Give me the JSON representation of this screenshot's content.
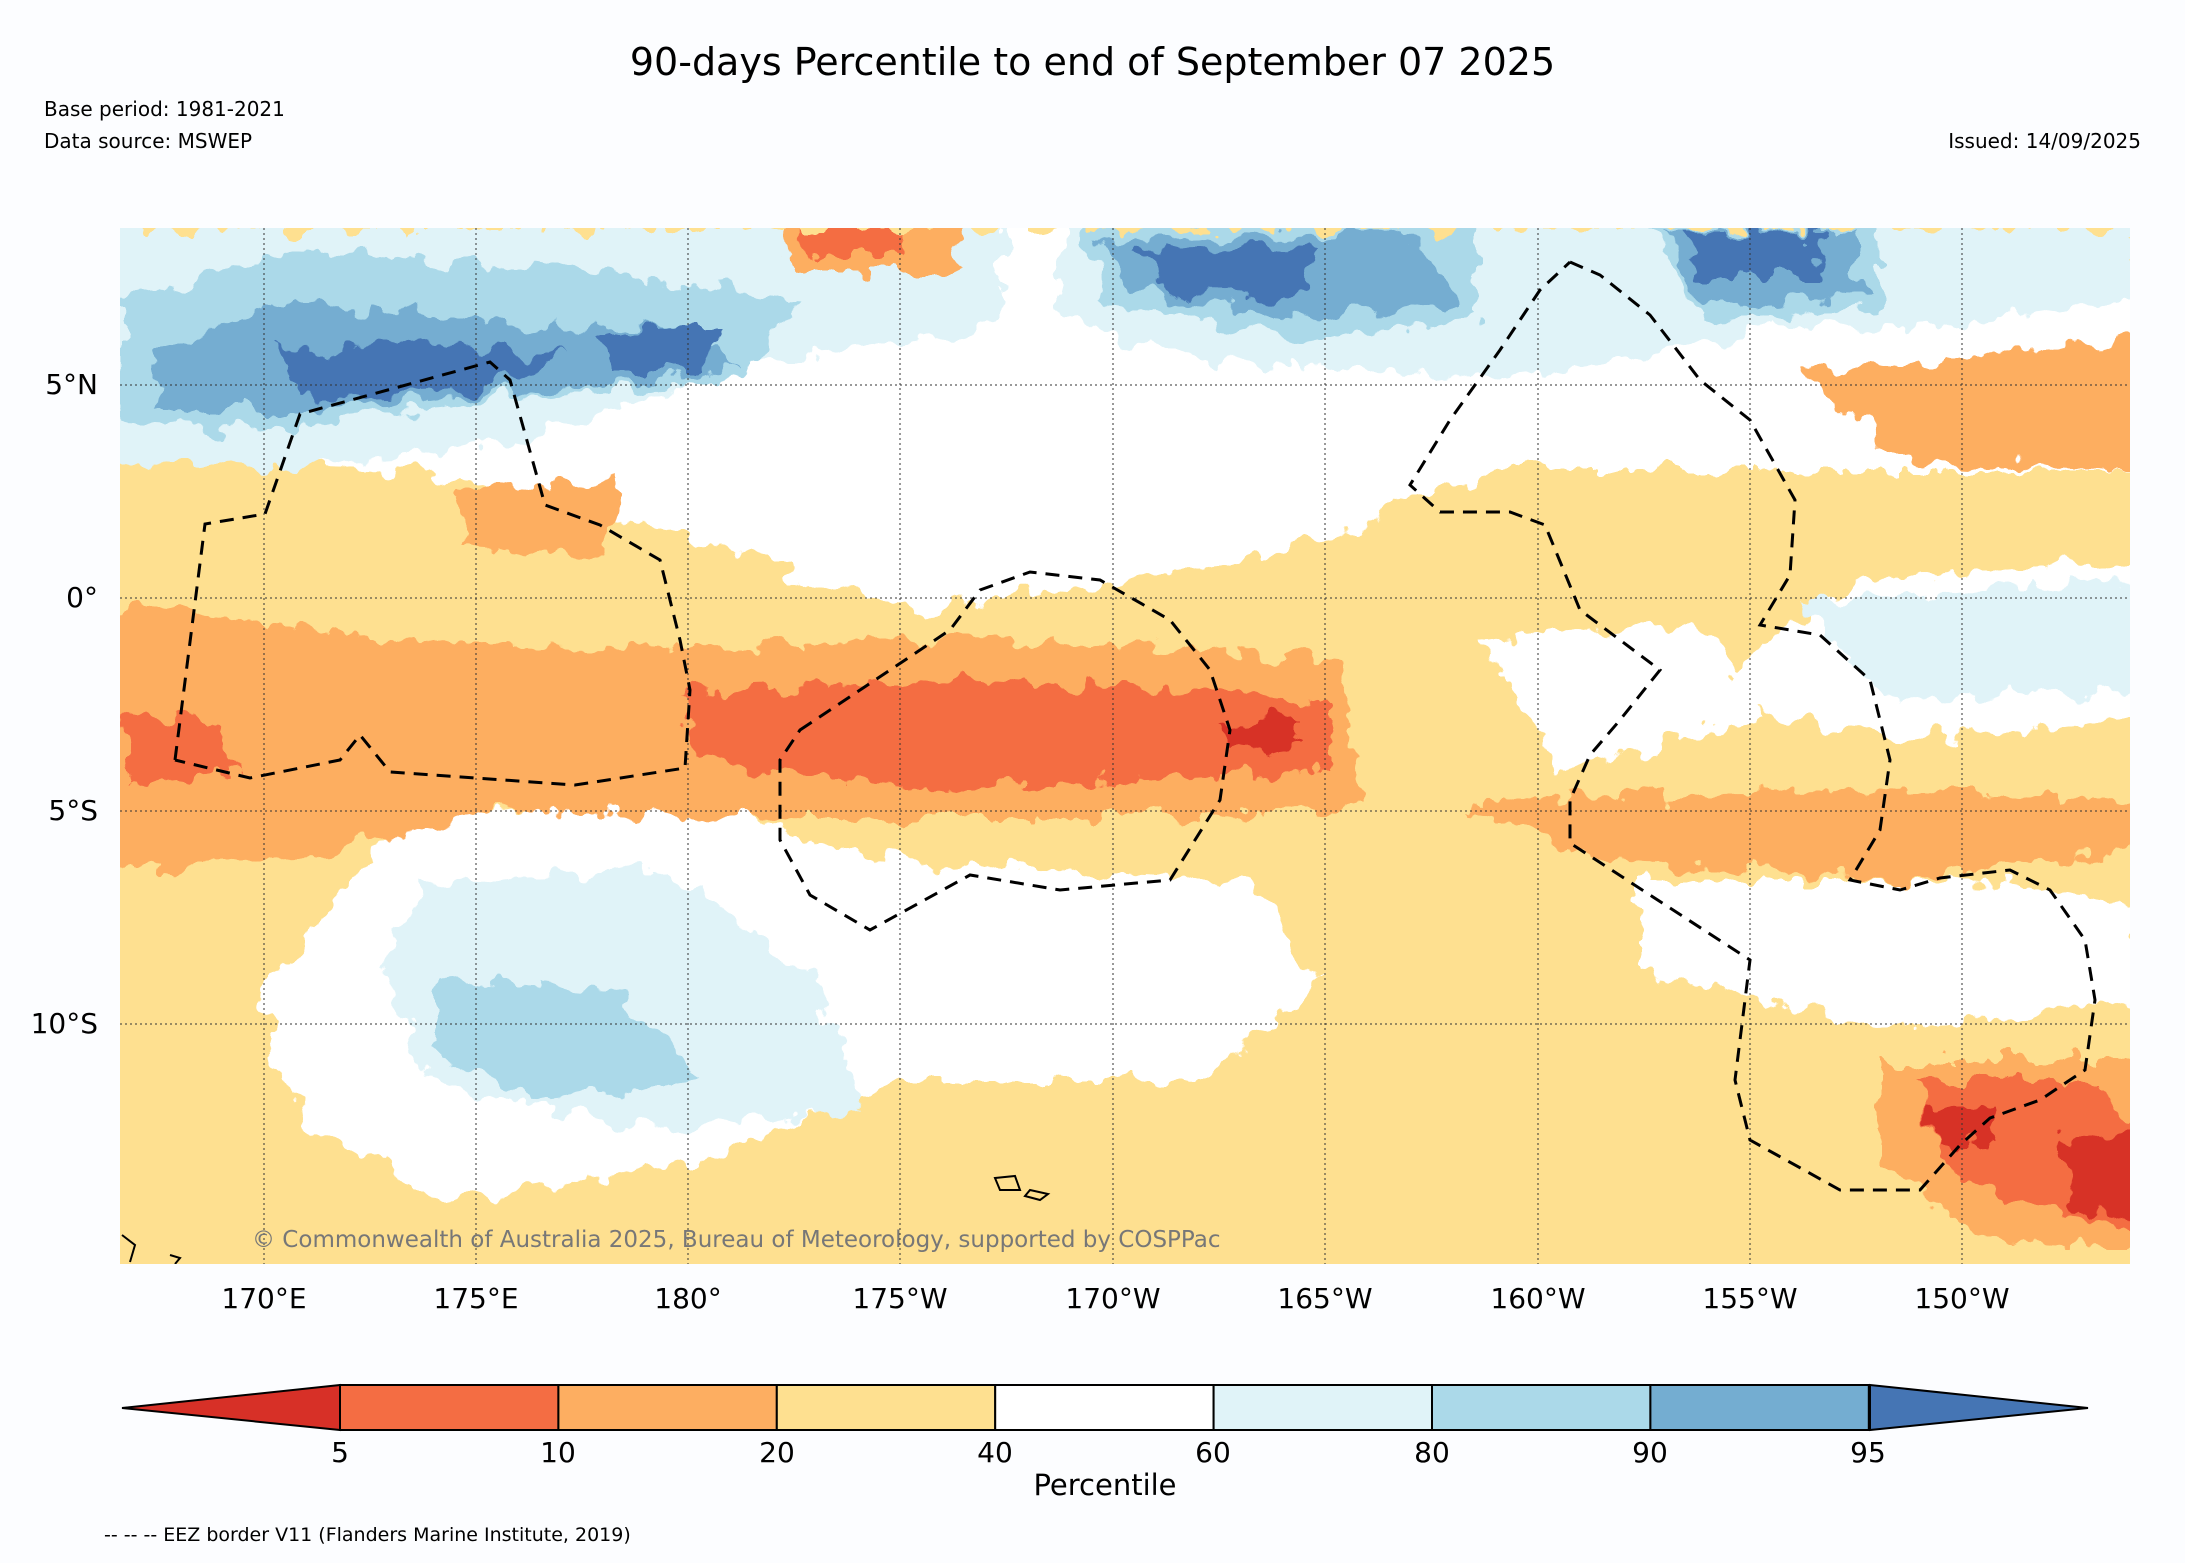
{
  "title": "90-days Percentile to end of September 07 2025",
  "base_period": "Base period: 1981-2021",
  "data_source": "Data source: MSWEP",
  "issued": "Issued: 14/09/2025",
  "copyright": "© Commonwealth of Australia 2025, Bureau of Meteorology, supported by COSPPac",
  "map": {
    "lat_labels": [
      "5°N",
      "0°",
      "5°S",
      "10°S"
    ],
    "lon_labels": [
      "170°E",
      "175°E",
      "180°",
      "175°W",
      "170°W",
      "165°W",
      "160°W",
      "155°W",
      "150°W"
    ],
    "lat_range": [
      -15.5,
      8.8
    ],
    "lon_range": [
      166.6,
      213.8
    ]
  },
  "colorbar": {
    "label": "Percentile",
    "ticks": [
      "5",
      "10",
      "20",
      "40",
      "60",
      "80",
      "90",
      "95"
    ],
    "colors": [
      "#d73027",
      "#f46d43",
      "#fdae61",
      "#fee090",
      "#ffffff",
      "#e0f3f8",
      "#abd9e9",
      "#74add1",
      "#4575b4"
    ]
  },
  "legend_note": "-- -- -- EEZ border V11 (Flanders Marine Institute, 2019)"
}
